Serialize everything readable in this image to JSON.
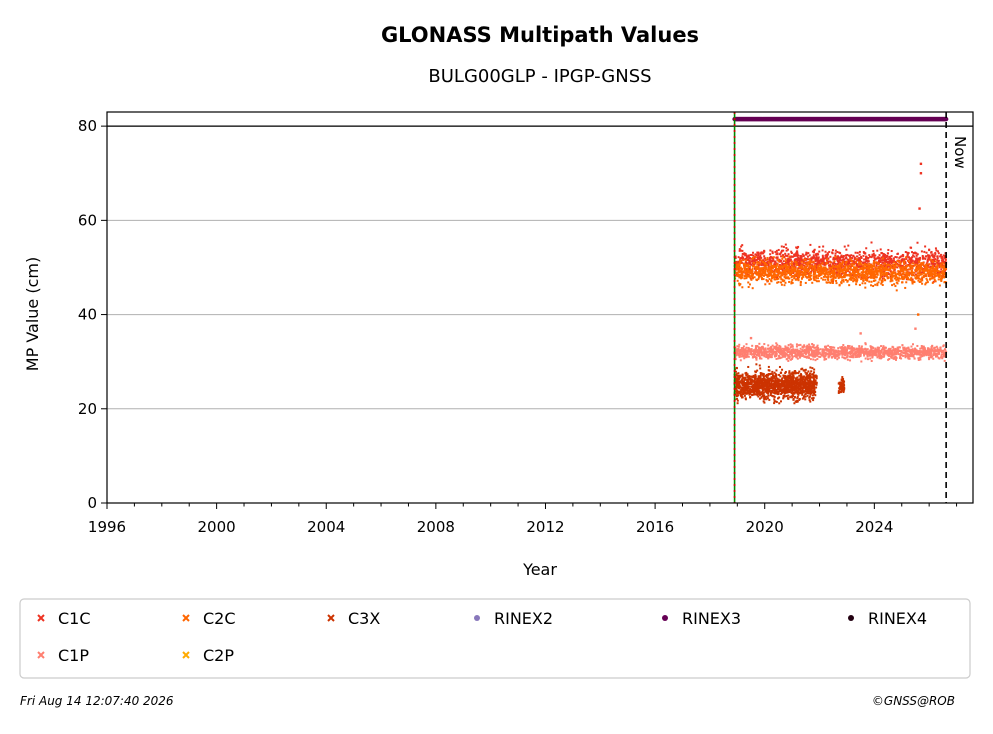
{
  "chart_data": {
    "type": "scatter",
    "title": "GLONASS Multipath Values",
    "subtitle": "BULG00GLP - IPGP-GNSS",
    "xlabel": "Year",
    "ylabel": "MP Value (cm)",
    "xlim": [
      1996,
      2027.6
    ],
    "ylim": [
      0,
      83
    ],
    "x_ticks": [
      1996,
      2000,
      2004,
      2008,
      2012,
      2016,
      2020,
      2024
    ],
    "y_ticks": [
      0,
      20,
      40,
      60,
      80
    ],
    "grid": "y",
    "legend_position": "bottom",
    "annotations": {
      "now_label": "Now",
      "now_x": 2026.62,
      "start_x": 2018.9,
      "ref_y": 80
    },
    "series": [
      {
        "name": "C1C",
        "color": "#ee3322",
        "marker": "x",
        "x_range": [
          2018.9,
          2026.62
        ],
        "y_center": 51,
        "y_spread": 4,
        "outliers": [
          {
            "x": 2025.7,
            "y": 72
          },
          {
            "x": 2025.7,
            "y": 70
          },
          {
            "x": 2025.65,
            "y": 62.5
          }
        ]
      },
      {
        "name": "C2C",
        "color": "#ff6600",
        "marker": "x",
        "x_range": [
          2018.9,
          2026.62
        ],
        "y_center": 49,
        "y_spread": 3.5,
        "outliers": [
          {
            "x": 2025.6,
            "y": 40
          }
        ]
      },
      {
        "name": "C3X",
        "color": "#cc3300",
        "marker": "x",
        "x_range": [
          2018.9,
          2021.9
        ],
        "y_center": 25,
        "y_spread": 4,
        "extra_clusters": [
          {
            "x_range": [
              2022.7,
              2022.9
            ],
            "y_center": 25,
            "y_spread": 3
          }
        ]
      },
      {
        "name": "RINEX2",
        "color": "#8877bb",
        "marker": "o"
      },
      {
        "name": "RINEX3",
        "color": "#660055",
        "marker": "o",
        "x_range": [
          2018.9,
          2026.62
        ],
        "y_value": 81.5
      },
      {
        "name": "RINEX4",
        "color": "#220011",
        "marker": "o"
      },
      {
        "name": "C1P",
        "color": "#ff7f70",
        "marker": "x",
        "x_range": [
          2018.9,
          2026.62
        ],
        "y_center": 32,
        "y_spread": 2,
        "outliers": [
          {
            "x": 2019.5,
            "y": 35
          },
          {
            "x": 2023.5,
            "y": 36
          },
          {
            "x": 2025.5,
            "y": 37
          }
        ]
      },
      {
        "name": "C2P",
        "color": "#ffaa00",
        "marker": "x"
      }
    ]
  },
  "footer": {
    "timestamp": "Fri Aug 14 12:07:40 2026",
    "copyright": "©GNSS@ROB"
  }
}
